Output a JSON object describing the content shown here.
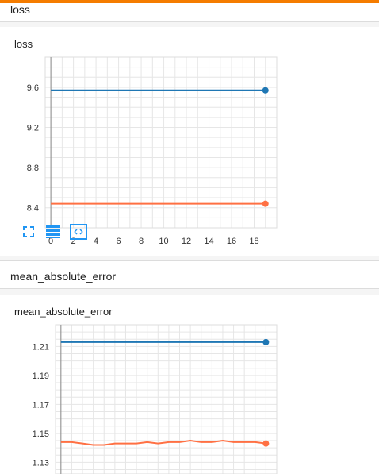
{
  "sections": [
    {
      "header": "loss",
      "card_title": "loss"
    },
    {
      "header": "mean_absolute_error",
      "card_title": "mean_absolute_error"
    }
  ],
  "colors": {
    "accent": "#f57c00",
    "series_blue": "#1f77b4",
    "series_orange": "#ff7043",
    "icon_blue": "#2196f3"
  },
  "icons": [
    "fullscreen-icon",
    "toggle-log-icon",
    "fit-domain-icon"
  ],
  "chart_data": [
    {
      "type": "line",
      "title": "loss",
      "xlabel": "",
      "ylabel": "",
      "xlim": [
        -0.5,
        20
      ],
      "ylim": [
        8.2,
        9.9
      ],
      "xticks": [
        "0",
        "2",
        "4",
        "6",
        "8",
        "10",
        "12",
        "14",
        "16",
        "18"
      ],
      "yticks": [
        "8.4",
        "8.8",
        "9.2",
        "9.6"
      ],
      "grid": true,
      "series": [
        {
          "color": "#1f77b4",
          "x": [
            0,
            19
          ],
          "y": [
            9.57,
            9.57
          ]
        },
        {
          "color": "#ff7043",
          "x": [
            0,
            19
          ],
          "y": [
            8.44,
            8.44
          ]
        }
      ]
    },
    {
      "type": "line",
      "title": "mean_absolute_error",
      "xlabel": "",
      "ylabel": "",
      "xlim": [
        -0.5,
        20
      ],
      "ylim": [
        1.122,
        1.225
      ],
      "xticks": [],
      "yticks": [
        "1.13",
        "1.15",
        "1.17",
        "1.19",
        "1.21"
      ],
      "grid": true,
      "series": [
        {
          "color": "#1f77b4",
          "x": [
            0,
            19
          ],
          "y": [
            1.213,
            1.213
          ]
        },
        {
          "color": "#ff7043",
          "x": [
            0,
            1,
            2,
            3,
            4,
            5,
            6,
            7,
            8,
            9,
            10,
            11,
            12,
            13,
            14,
            15,
            16,
            17,
            18,
            19
          ],
          "y": [
            1.144,
            1.144,
            1.143,
            1.142,
            1.142,
            1.143,
            1.143,
            1.143,
            1.144,
            1.143,
            1.144,
            1.144,
            1.145,
            1.144,
            1.144,
            1.145,
            1.144,
            1.144,
            1.144,
            1.143
          ]
        }
      ]
    }
  ]
}
